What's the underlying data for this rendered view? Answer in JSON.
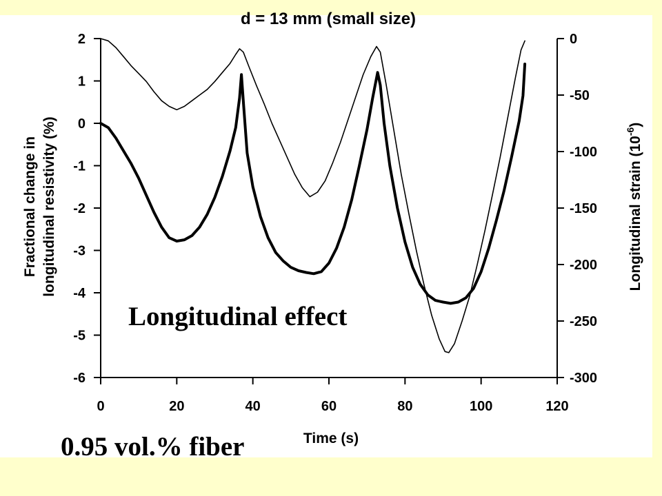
{
  "chart_data": {
    "type": "line",
    "title": "d = 13 mm (small size)",
    "xlabel": "Time (s)",
    "ylabel_left": [
      "Fractional change in",
      "longitudinal resistivity (%)"
    ],
    "ylabel_right": "Longitudinal strain (10",
    "ylabel_right_exponent": "-6",
    "ylabel_right_close": ")",
    "xlim": [
      0,
      120
    ],
    "ylim_left": [
      -6,
      2
    ],
    "ylim_right": [
      -300,
      0
    ],
    "x_ticks": [
      "0",
      "20",
      "40",
      "60",
      "80",
      "100",
      "120"
    ],
    "y_left_ticks": [
      "2",
      "1",
      "0",
      "-1",
      "-2",
      "-3",
      "-4",
      "-5",
      "-6"
    ],
    "y_right_ticks": [
      "0",
      "-50",
      "-100",
      "-150",
      "-200",
      "-250",
      "-300"
    ],
    "grid": false,
    "series": [
      {
        "axis": "left",
        "color": "#000000",
        "points": [
          [
            0,
            0
          ],
          [
            2,
            -0.1
          ],
          [
            4,
            -0.35
          ],
          [
            6,
            -0.65
          ],
          [
            8,
            -0.95
          ],
          [
            10,
            -1.3
          ],
          [
            12,
            -1.7
          ],
          [
            14,
            -2.1
          ],
          [
            16,
            -2.45
          ],
          [
            18,
            -2.7
          ],
          [
            20,
            -2.78
          ],
          [
            22,
            -2.75
          ],
          [
            24,
            -2.65
          ],
          [
            26,
            -2.45
          ],
          [
            28,
            -2.15
          ],
          [
            30,
            -1.75
          ],
          [
            32,
            -1.25
          ],
          [
            34,
            -0.65
          ],
          [
            35.5,
            -0.1
          ],
          [
            36.5,
            0.6
          ],
          [
            37,
            1.15
          ],
          [
            37.6,
            0.4
          ],
          [
            38.5,
            -0.7
          ],
          [
            40,
            -1.5
          ],
          [
            42,
            -2.2
          ],
          [
            44,
            -2.7
          ],
          [
            46,
            -3.05
          ],
          [
            48,
            -3.25
          ],
          [
            50,
            -3.4
          ],
          [
            52,
            -3.48
          ],
          [
            54,
            -3.52
          ],
          [
            56,
            -3.55
          ],
          [
            58,
            -3.5
          ],
          [
            60,
            -3.3
          ],
          [
            62,
            -2.95
          ],
          [
            64,
            -2.45
          ],
          [
            66,
            -1.8
          ],
          [
            68,
            -1.0
          ],
          [
            70,
            -0.15
          ],
          [
            71.5,
            0.6
          ],
          [
            72.8,
            1.2
          ],
          [
            73.5,
            0.9
          ],
          [
            74.5,
            0.0
          ],
          [
            76,
            -1.0
          ],
          [
            78,
            -2.0
          ],
          [
            80,
            -2.8
          ],
          [
            82,
            -3.4
          ],
          [
            84,
            -3.8
          ],
          [
            86,
            -4.05
          ],
          [
            88,
            -4.18
          ],
          [
            90,
            -4.22
          ],
          [
            92,
            -4.25
          ],
          [
            94,
            -4.22
          ],
          [
            96,
            -4.12
          ],
          [
            98,
            -3.9
          ],
          [
            100,
            -3.5
          ],
          [
            102,
            -2.95
          ],
          [
            104,
            -2.3
          ],
          [
            106,
            -1.6
          ],
          [
            108,
            -0.8
          ],
          [
            110,
            0.05
          ],
          [
            111,
            0.65
          ],
          [
            111.5,
            1.4
          ]
        ]
      },
      {
        "axis": "right",
        "color": "#000000",
        "points": [
          [
            0,
            0
          ],
          [
            2,
            -2
          ],
          [
            4,
            -8
          ],
          [
            6,
            -16
          ],
          [
            8,
            -24
          ],
          [
            10,
            -31
          ],
          [
            12,
            -38
          ],
          [
            14,
            -47
          ],
          [
            16,
            -55
          ],
          [
            18,
            -60
          ],
          [
            20,
            -63
          ],
          [
            22,
            -60
          ],
          [
            24,
            -55
          ],
          [
            26,
            -50
          ],
          [
            28,
            -45
          ],
          [
            30,
            -38
          ],
          [
            32,
            -30
          ],
          [
            34,
            -22
          ],
          [
            35.5,
            -14
          ],
          [
            36.5,
            -9
          ],
          [
            37.5,
            -12
          ],
          [
            39,
            -25
          ],
          [
            41,
            -42
          ],
          [
            43,
            -58
          ],
          [
            45,
            -75
          ],
          [
            47,
            -90
          ],
          [
            49,
            -105
          ],
          [
            51,
            -120
          ],
          [
            53,
            -132
          ],
          [
            55,
            -140
          ],
          [
            57,
            -136
          ],
          [
            59,
            -126
          ],
          [
            61,
            -110
          ],
          [
            63,
            -92
          ],
          [
            65,
            -72
          ],
          [
            67,
            -52
          ],
          [
            69,
            -32
          ],
          [
            71,
            -16
          ],
          [
            72.5,
            -7
          ],
          [
            73.5,
            -12
          ],
          [
            75,
            -40
          ],
          [
            77,
            -80
          ],
          [
            79,
            -120
          ],
          [
            81,
            -155
          ],
          [
            83,
            -188
          ],
          [
            85,
            -218
          ],
          [
            87,
            -245
          ],
          [
            89,
            -266
          ],
          [
            90.5,
            -277
          ],
          [
            91.5,
            -278
          ],
          [
            93,
            -270
          ],
          [
            95,
            -250
          ],
          [
            97,
            -228
          ],
          [
            99,
            -200
          ],
          [
            101,
            -170
          ],
          [
            103,
            -138
          ],
          [
            105,
            -105
          ],
          [
            107,
            -70
          ],
          [
            109,
            -35
          ],
          [
            110.5,
            -10
          ],
          [
            111.5,
            -2
          ]
        ]
      }
    ],
    "annotations": [
      "Longitudinal effect"
    ]
  },
  "footer_note": "0.95 vol.% fiber"
}
